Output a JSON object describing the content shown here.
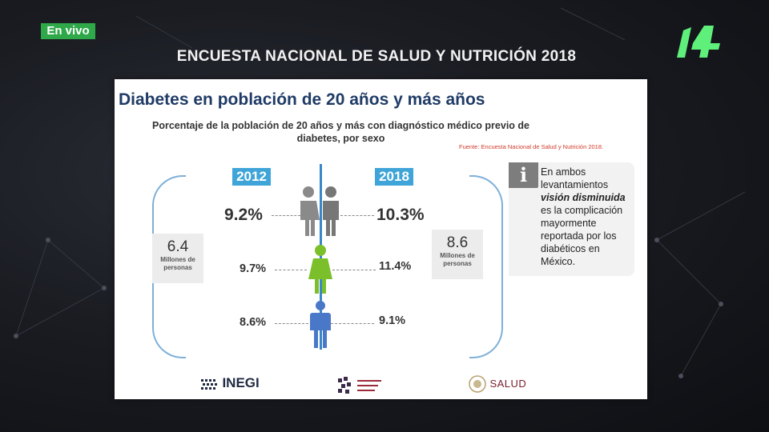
{
  "broadcast": {
    "live_label": "En vivo",
    "headline": "ENCUESTA NACIONAL DE SALUD Y NUTRICIÓN 2018",
    "channel_logo_icon": "channel-14-logo",
    "accent": "#2fa84a"
  },
  "slide": {
    "title": "Diabetes en población de 20 años y más años",
    "subtitle": "Porcentaje de la población de 20 años y más con diagnóstico médico previo de diabetes, por sexo",
    "source": "Fuente: Encuesta Nacional de Salud y Nutrición 2018.",
    "year_left": "2012",
    "year_right": "2018",
    "left_total": {
      "value": "6.4",
      "label": "Millones de personas"
    },
    "right_total": {
      "value": "8.6",
      "label": "Millones de personas"
    },
    "rows": {
      "total": {
        "left": "9.2%",
        "right": "10.3%",
        "icon": "couple-icon"
      },
      "women": {
        "left": "9.7%",
        "right": "11.4%",
        "icon": "woman-icon"
      },
      "men": {
        "left": "8.6%",
        "right": "9.1%",
        "icon": "man-icon"
      }
    },
    "info": {
      "icon": "info-icon",
      "before": "En ambos levantamientos",
      "emphasis": "visión disminuida",
      "after": "es la complicación mayormente reportada por los diabéticos en México."
    },
    "logos": {
      "inegi": "INEGI",
      "salud": "SALUD"
    },
    "colors": {
      "year_box": "#3fa4d8",
      "women": "#7bbf2a",
      "men": "#4a78c8",
      "total": "#888888"
    }
  }
}
